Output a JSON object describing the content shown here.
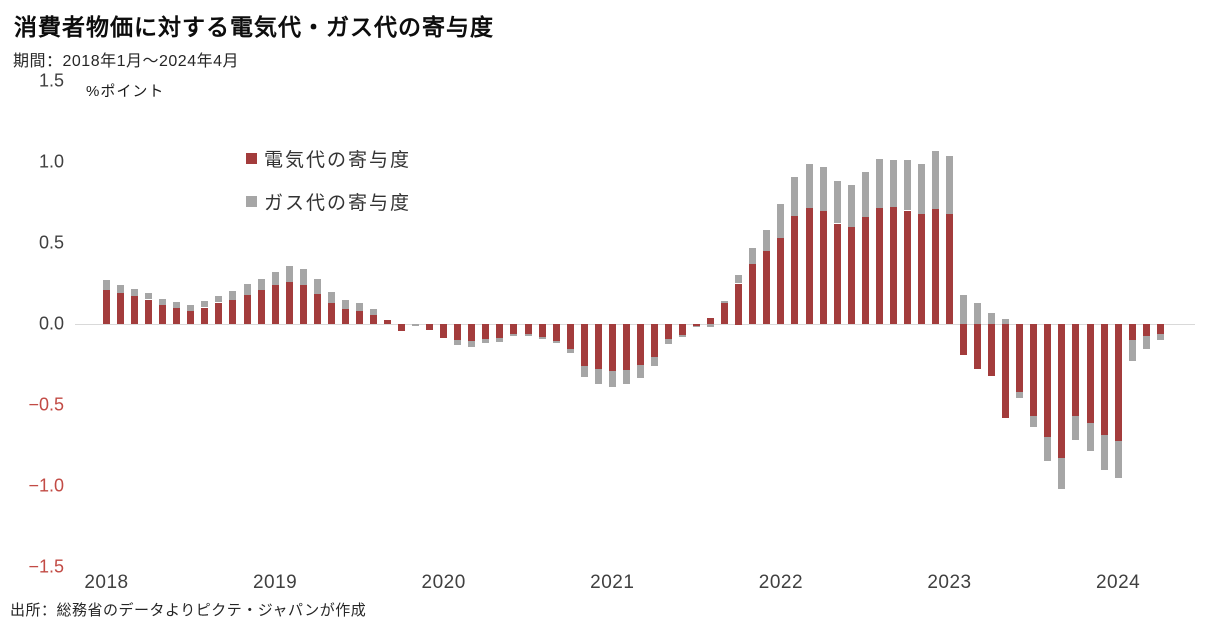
{
  "title": "消費者物価に対する電気代・ガス代の寄与度",
  "subtitle": "期間：2018年1月～2024年4月",
  "unit_label": "%ポイント",
  "source": "出所：総務省のデータよりピクテ・ジャパンが作成",
  "colors": {
    "electricity": "#a33c3c",
    "gas": "#a6a6a6",
    "negative_tick": "#c24b45",
    "positive_tick": "#404040",
    "zero_line": "#d9d9d9"
  },
  "legend": [
    {
      "label": "電気代の寄与度",
      "color": "#a33c3c"
    },
    {
      "label": "ガス代の寄与度",
      "color": "#a6a6a6"
    }
  ],
  "y_axis": {
    "ticks": [
      {
        "label": "1.5",
        "value": 1.5
      },
      {
        "label": "1.0",
        "value": 1.0
      },
      {
        "label": "0.5",
        "value": 0.5
      },
      {
        "label": "0.0",
        "value": 0.0
      },
      {
        "label": "−0.5",
        "value": -0.5
      },
      {
        "label": "−1.0",
        "value": -1.0
      },
      {
        "label": "−1.5",
        "value": -1.5
      }
    ]
  },
  "x_axis": {
    "ticks": [
      "2018",
      "2019",
      "2020",
      "2021",
      "2022",
      "2023",
      "2024"
    ]
  },
  "chart_data": {
    "type": "bar",
    "stacked": true,
    "title": "消費者物価に対する電気代・ガス代の寄与度",
    "xlabel": "",
    "ylabel": "%ポイント",
    "ylim": [
      -1.5,
      1.5
    ],
    "grid": "zero-line-only",
    "legend_position": "top-left-inside",
    "x": [
      "2018-01",
      "2018-02",
      "2018-03",
      "2018-04",
      "2018-05",
      "2018-06",
      "2018-07",
      "2018-08",
      "2018-09",
      "2018-10",
      "2018-11",
      "2018-12",
      "2019-01",
      "2019-02",
      "2019-03",
      "2019-04",
      "2019-05",
      "2019-06",
      "2019-07",
      "2019-08",
      "2019-09",
      "2019-10",
      "2019-11",
      "2019-12",
      "2020-01",
      "2020-02",
      "2020-03",
      "2020-04",
      "2020-05",
      "2020-06",
      "2020-07",
      "2020-08",
      "2020-09",
      "2020-10",
      "2020-11",
      "2020-12",
      "2021-01",
      "2021-02",
      "2021-03",
      "2021-04",
      "2021-05",
      "2021-06",
      "2021-07",
      "2021-08",
      "2021-09",
      "2021-10",
      "2021-11",
      "2021-12",
      "2022-01",
      "2022-02",
      "2022-03",
      "2022-04",
      "2022-05",
      "2022-06",
      "2022-07",
      "2022-08",
      "2022-09",
      "2022-10",
      "2022-11",
      "2022-12",
      "2023-01",
      "2023-02",
      "2023-03",
      "2023-04",
      "2023-05",
      "2023-06",
      "2023-07",
      "2023-08",
      "2023-09",
      "2023-10",
      "2023-11",
      "2023-12",
      "2024-01",
      "2024-02",
      "2024-03",
      "2024-04"
    ],
    "series": [
      {
        "name": "電気代の寄与度",
        "color": "#a33c3c",
        "values": [
          0.21,
          0.19,
          0.17,
          0.15,
          0.12,
          0.1,
          0.085,
          0.1,
          0.13,
          0.15,
          0.18,
          0.21,
          0.24,
          0.26,
          0.24,
          0.19,
          0.13,
          0.095,
          0.08,
          0.055,
          0.025,
          -0.045,
          0.0,
          -0.04,
          -0.085,
          -0.1,
          -0.105,
          -0.095,
          -0.085,
          -0.06,
          -0.06,
          -0.08,
          -0.105,
          -0.155,
          -0.26,
          -0.275,
          -0.29,
          -0.285,
          -0.25,
          -0.205,
          -0.09,
          -0.07,
          -0.015,
          0.04,
          0.13,
          0.25,
          0.37,
          0.45,
          0.53,
          0.67,
          0.72,
          0.7,
          0.62,
          0.6,
          0.66,
          0.72,
          0.72,
          0.7,
          0.68,
          0.71,
          0.68,
          -0.19,
          -0.28,
          -0.32,
          -0.58,
          -0.42,
          -0.565,
          -0.7,
          -0.83,
          -0.57,
          -0.61,
          -0.685,
          -0.72,
          -0.1,
          -0.075,
          -0.06
        ]
      },
      {
        "name": "ガス代の寄与度",
        "color": "#a6a6a6",
        "values": [
          0.06,
          0.05,
          0.045,
          0.04,
          0.035,
          0.035,
          0.035,
          0.04,
          0.04,
          0.055,
          0.07,
          0.07,
          0.08,
          0.1,
          0.1,
          0.09,
          0.07,
          0.055,
          0.05,
          0.035,
          0.0,
          0.0,
          -0.012,
          0.0,
          0.0,
          -0.03,
          -0.035,
          -0.025,
          -0.025,
          -0.01,
          -0.01,
          -0.015,
          -0.015,
          -0.025,
          -0.07,
          -0.09,
          -0.1,
          -0.085,
          -0.08,
          -0.055,
          -0.03,
          -0.01,
          -0.005,
          -0.02,
          0.01,
          0.05,
          0.1,
          0.13,
          0.21,
          0.24,
          0.27,
          0.27,
          0.26,
          0.26,
          0.28,
          0.3,
          0.29,
          0.31,
          0.31,
          0.36,
          0.36,
          0.18,
          0.13,
          0.07,
          0.03,
          -0.04,
          -0.065,
          -0.15,
          -0.19,
          -0.15,
          -0.17,
          -0.215,
          -0.23,
          -0.13,
          -0.08,
          -0.04
        ]
      }
    ]
  }
}
